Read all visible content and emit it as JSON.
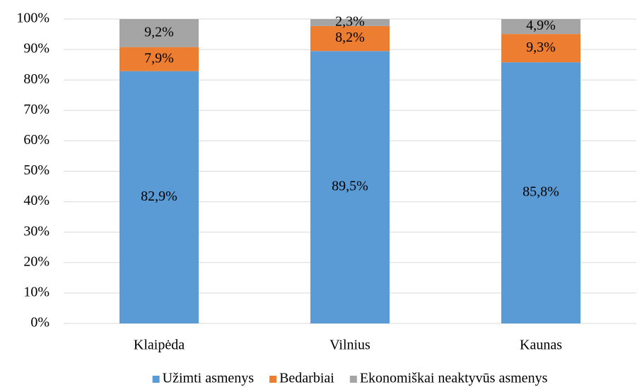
{
  "chart_data": {
    "type": "stacked_bar",
    "categories": [
      "Klaipėda",
      "Vilnius",
      "Kaunas"
    ],
    "series": [
      {
        "name": "Užimti asmenys",
        "color": "#5b9bd5",
        "values": [
          82.9,
          89.5,
          85.8
        ],
        "value_labels": [
          "82,9%",
          "89,5%",
          "85,8%"
        ]
      },
      {
        "name": "Bedarbiai",
        "color": "#ed7d31",
        "values": [
          7.9,
          8.2,
          9.3
        ],
        "value_labels": [
          "7,9%",
          "8,2%",
          "9,3%"
        ]
      },
      {
        "name": "Ekonomiškai neaktyvūs asmenys",
        "color": "#a5a5a5",
        "values": [
          9.2,
          2.3,
          4.9
        ],
        "value_labels": [
          "9,2%",
          "2,3%",
          "4,9%"
        ]
      }
    ],
    "ylim": [
      0,
      100
    ],
    "yticks": [
      {
        "value": 0,
        "label": "0%"
      },
      {
        "value": 10,
        "label": "10%"
      },
      {
        "value": 20,
        "label": "20%"
      },
      {
        "value": 30,
        "label": "30%"
      },
      {
        "value": 40,
        "label": "40%"
      },
      {
        "value": 50,
        "label": "50%"
      },
      {
        "value": 60,
        "label": "60%"
      },
      {
        "value": 70,
        "label": "70%"
      },
      {
        "value": 80,
        "label": "80%"
      },
      {
        "value": 90,
        "label": "90%"
      },
      {
        "value": 100,
        "label": "100%"
      }
    ],
    "grid": true,
    "legend": "bottom"
  }
}
